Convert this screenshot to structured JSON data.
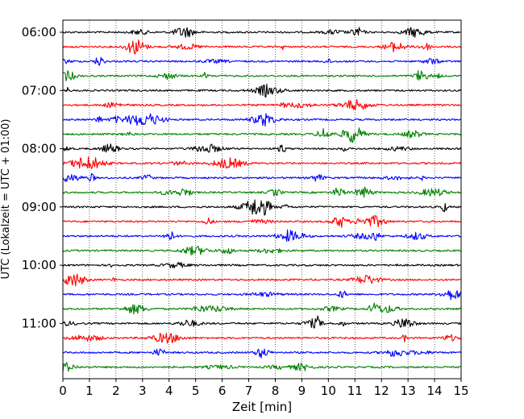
{
  "chart_data": {
    "type": "line",
    "title": "",
    "xlabel": "Zeit  [min]",
    "ylabel": "UTC (Lokalzeit = UTC + 01:00)",
    "xlim": [
      0,
      15
    ],
    "x_ticks": [
      "0",
      "1",
      "2",
      "3",
      "4",
      "5",
      "6",
      "7",
      "8",
      "9",
      "10",
      "11",
      "12",
      "13",
      "14",
      "15"
    ],
    "y_ticks": [
      "06:00",
      "07:00",
      "08:00",
      "09:00",
      "10:00",
      "11:00"
    ],
    "grid": "vertical dotted at each minute",
    "series": [
      {
        "start": "06:00",
        "color": "#000000"
      },
      {
        "start": "06:15",
        "color": "#ff0000"
      },
      {
        "start": "06:30",
        "color": "#0000ff"
      },
      {
        "start": "06:45",
        "color": "#008000"
      },
      {
        "start": "07:00",
        "color": "#000000"
      },
      {
        "start": "07:15",
        "color": "#ff0000"
      },
      {
        "start": "07:30",
        "color": "#0000ff"
      },
      {
        "start": "07:45",
        "color": "#008000"
      },
      {
        "start": "08:00",
        "color": "#000000"
      },
      {
        "start": "08:15",
        "color": "#ff0000"
      },
      {
        "start": "08:30",
        "color": "#0000ff"
      },
      {
        "start": "08:45",
        "color": "#008000"
      },
      {
        "start": "09:00",
        "color": "#000000"
      },
      {
        "start": "09:15",
        "color": "#ff0000"
      },
      {
        "start": "09:30",
        "color": "#0000ff"
      },
      {
        "start": "09:45",
        "color": "#008000"
      },
      {
        "start": "10:00",
        "color": "#000000"
      },
      {
        "start": "10:15",
        "color": "#ff0000"
      },
      {
        "start": "10:30",
        "color": "#0000ff"
      },
      {
        "start": "10:45",
        "color": "#008000"
      },
      {
        "start": "11:00",
        "color": "#000000"
      },
      {
        "start": "11:15",
        "color": "#ff0000"
      },
      {
        "start": "11:30",
        "color": "#0000ff"
      },
      {
        "start": "11:45",
        "color": "#008000"
      }
    ]
  }
}
